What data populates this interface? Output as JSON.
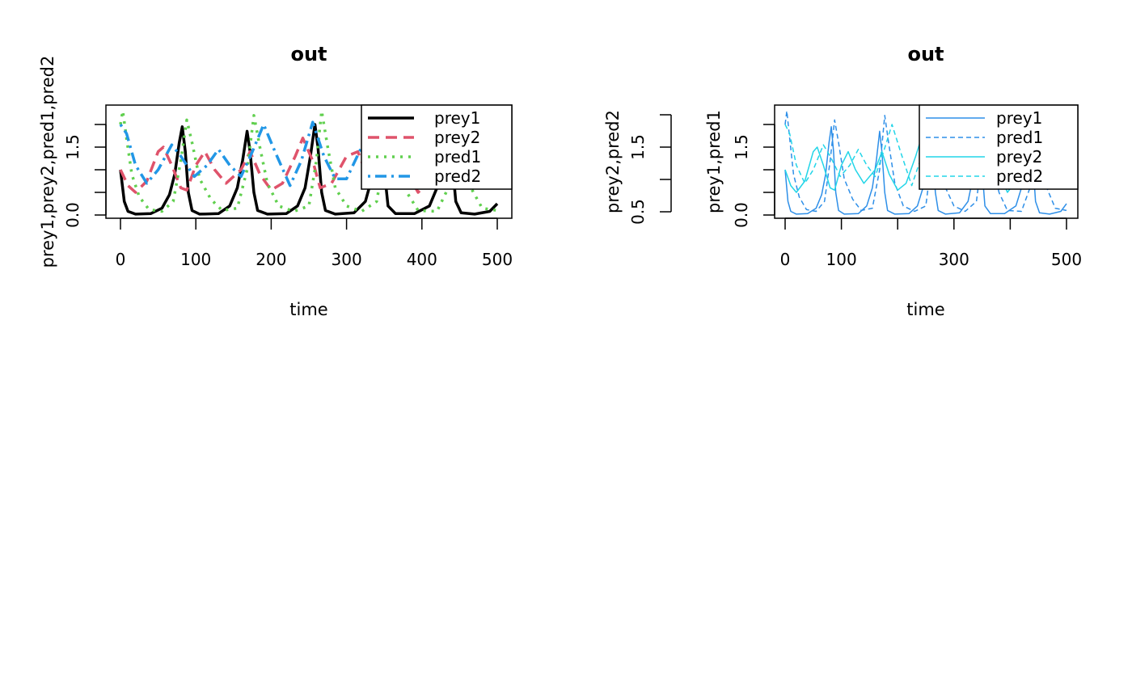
{
  "chart_data": [
    {
      "type": "line",
      "title": "out",
      "xlabel": "time",
      "ylabel": "prey1,prey2,pred1,pred2",
      "xlim": [
        0,
        500
      ],
      "ylim": [
        0,
        2.3
      ],
      "xticks": [
        0,
        100,
        200,
        300,
        400,
        500
      ],
      "xtick_labels": [
        "0",
        "100",
        "200",
        "300",
        "400",
        "500"
      ],
      "yticks": [
        0,
        0.5,
        1,
        1.5,
        2
      ],
      "ytick_labels": [
        "0.0",
        "",
        "",
        "1.5",
        ""
      ],
      "grid": false,
      "legend_position": "top-right",
      "series": [
        {
          "name": "prey1",
          "color": "#000000",
          "dash": "solid",
          "width": 3.5,
          "points": [
            [
              0,
              1.0
            ],
            [
              5,
              0.3
            ],
            [
              10,
              0.08
            ],
            [
              20,
              0.02
            ],
            [
              40,
              0.03
            ],
            [
              55,
              0.15
            ],
            [
              65,
              0.45
            ],
            [
              72,
              0.9
            ],
            [
              78,
              1.6
            ],
            [
              82,
              1.95
            ],
            [
              86,
              1.4
            ],
            [
              90,
              0.5
            ],
            [
              95,
              0.1
            ],
            [
              105,
              0.02
            ],
            [
              130,
              0.03
            ],
            [
              145,
              0.2
            ],
            [
              155,
              0.6
            ],
            [
              162,
              1.2
            ],
            [
              168,
              1.85
            ],
            [
              172,
              1.4
            ],
            [
              177,
              0.5
            ],
            [
              182,
              0.1
            ],
            [
              195,
              0.02
            ],
            [
              220,
              0.03
            ],
            [
              235,
              0.2
            ],
            [
              245,
              0.6
            ],
            [
              252,
              1.3
            ],
            [
              258,
              2.0
            ],
            [
              262,
              1.5
            ],
            [
              267,
              0.5
            ],
            [
              272,
              0.1
            ],
            [
              285,
              0.02
            ],
            [
              310,
              0.05
            ],
            [
              325,
              0.3
            ],
            [
              335,
              0.9
            ],
            [
              345,
              2.0
            ],
            [
              350,
              1.0
            ],
            [
              355,
              0.2
            ],
            [
              365,
              0.03
            ],
            [
              390,
              0.03
            ],
            [
              410,
              0.2
            ],
            [
              420,
              0.6
            ],
            [
              428,
              1.4
            ],
            [
              435,
              2.0
            ],
            [
              440,
              1.2
            ],
            [
              445,
              0.3
            ],
            [
              452,
              0.05
            ],
            [
              470,
              0.02
            ],
            [
              490,
              0.08
            ],
            [
              500,
              0.25
            ]
          ]
        },
        {
          "name": "prey2",
          "color": "#DF536B",
          "dash": "dashed",
          "width": 3.5,
          "points": [
            [
              0,
              1.0
            ],
            [
              10,
              0.65
            ],
            [
              20,
              0.5
            ],
            [
              35,
              0.75
            ],
            [
              50,
              1.4
            ],
            [
              57,
              1.5
            ],
            [
              68,
              1.1
            ],
            [
              80,
              0.6
            ],
            [
              88,
              0.55
            ],
            [
              100,
              1.1
            ],
            [
              112,
              1.4
            ],
            [
              125,
              1.0
            ],
            [
              140,
              0.7
            ],
            [
              160,
              1.0
            ],
            [
              172,
              1.4
            ],
            [
              185,
              0.9
            ],
            [
              200,
              0.55
            ],
            [
              215,
              0.7
            ],
            [
              232,
              1.3
            ],
            [
              242,
              1.7
            ],
            [
              255,
              1.2
            ],
            [
              265,
              0.6
            ],
            [
              280,
              0.7
            ],
            [
              300,
              1.3
            ],
            [
              315,
              1.4
            ],
            [
              330,
              0.75
            ],
            [
              345,
              0.9
            ],
            [
              362,
              1.5
            ],
            [
              375,
              1.1
            ],
            [
              395,
              0.5
            ],
            [
              410,
              0.75
            ],
            [
              425,
              1.3
            ],
            [
              440,
              1.2
            ],
            [
              455,
              0.7
            ],
            [
              470,
              0.6
            ],
            [
              485,
              0.9
            ],
            [
              500,
              1.5
            ]
          ]
        },
        {
          "name": "pred1",
          "color": "#61D04F",
          "dash": "dotted",
          "width": 3.5,
          "points": [
            [
              0,
              2.0
            ],
            [
              3,
              2.3
            ],
            [
              8,
              1.7
            ],
            [
              15,
              0.9
            ],
            [
              25,
              0.4
            ],
            [
              38,
              0.12
            ],
            [
              55,
              0.08
            ],
            [
              70,
              0.3
            ],
            [
              80,
              1.2
            ],
            [
              88,
              2.1
            ],
            [
              95,
              1.6
            ],
            [
              105,
              0.8
            ],
            [
              120,
              0.35
            ],
            [
              135,
              0.1
            ],
            [
              155,
              0.15
            ],
            [
              168,
              1.0
            ],
            [
              177,
              2.2
            ],
            [
              185,
              1.5
            ],
            [
              195,
              0.7
            ],
            [
              210,
              0.2
            ],
            [
              230,
              0.08
            ],
            [
              250,
              0.2
            ],
            [
              260,
              1.2
            ],
            [
              267,
              2.3
            ],
            [
              275,
              1.5
            ],
            [
              285,
              0.6
            ],
            [
              300,
              0.2
            ],
            [
              320,
              0.08
            ],
            [
              340,
              0.3
            ],
            [
              352,
              1.5
            ],
            [
              358,
              2.2
            ],
            [
              366,
              1.3
            ],
            [
              380,
              0.5
            ],
            [
              395,
              0.1
            ],
            [
              420,
              0.08
            ],
            [
              435,
              0.6
            ],
            [
              445,
              1.8
            ],
            [
              452,
              1.6
            ],
            [
              465,
              0.6
            ],
            [
              480,
              0.15
            ],
            [
              500,
              0.1
            ]
          ]
        },
        {
          "name": "pred2",
          "color": "#2297E6",
          "dash": "dotdash",
          "width": 3.5,
          "points": [
            [
              0,
              2.0
            ],
            [
              8,
              1.8
            ],
            [
              20,
              1.1
            ],
            [
              35,
              0.7
            ],
            [
              50,
              1.0
            ],
            [
              68,
              1.55
            ],
            [
              80,
              1.3
            ],
            [
              98,
              0.85
            ],
            [
              115,
              1.1
            ],
            [
              130,
              1.45
            ],
            [
              145,
              1.1
            ],
            [
              160,
              0.85
            ],
            [
              175,
              1.4
            ],
            [
              190,
              2.0
            ],
            [
              205,
              1.4
            ],
            [
              225,
              0.65
            ],
            [
              240,
              1.2
            ],
            [
              255,
              2.05
            ],
            [
              270,
              1.3
            ],
            [
              285,
              0.8
            ],
            [
              300,
              0.8
            ],
            [
              320,
              1.5
            ],
            [
              340,
              1.3
            ],
            [
              355,
              0.9
            ],
            [
              370,
              1.4
            ],
            [
              385,
              1.5
            ],
            [
              400,
              0.9
            ],
            [
              420,
              0.6
            ],
            [
              435,
              1.6
            ],
            [
              450,
              1.5
            ],
            [
              470,
              0.75
            ],
            [
              485,
              0.8
            ],
            [
              500,
              1.3
            ]
          ]
        }
      ]
    },
    {
      "type": "line",
      "title": "out",
      "xlabel": "time",
      "ylabel": "prey1,pred1",
      "ylabel2": "prey2,pred2",
      "xlim": [
        0,
        500
      ],
      "ylim": [
        0,
        2.3
      ],
      "xticks": [
        0,
        100,
        200,
        300,
        400,
        500
      ],
      "xtick_labels": [
        "0",
        "100",
        "",
        "300",
        "",
        "500"
      ],
      "yticks": [
        0,
        0.5,
        1,
        1.5,
        2
      ],
      "ytick_labels": [
        "0.0",
        "",
        "",
        "1.5",
        ""
      ],
      "y2ticks": [
        0.5,
        1.0,
        1.5,
        2.0
      ],
      "y2tick_labels": [
        "0.5",
        "",
        "1.5",
        ""
      ],
      "grid": false,
      "legend_position": "top-right",
      "legend_order": [
        "prey1",
        "pred1",
        "prey2",
        "pred2"
      ],
      "series": [
        {
          "name": "prey1",
          "color": "#2E8FE8",
          "dash": "solid",
          "width": 1.5,
          "same_as": "prey1"
        },
        {
          "name": "pred1",
          "color": "#2E8FE8",
          "dash": "dashed",
          "width": 1.5,
          "same_as": "pred1"
        },
        {
          "name": "prey2",
          "color": "#22D5E8",
          "dash": "solid",
          "width": 1.5,
          "same_as": "prey2"
        },
        {
          "name": "pred2",
          "color": "#22D5E8",
          "dash": "dashed",
          "width": 1.5,
          "same_as": "pred2"
        }
      ]
    }
  ]
}
